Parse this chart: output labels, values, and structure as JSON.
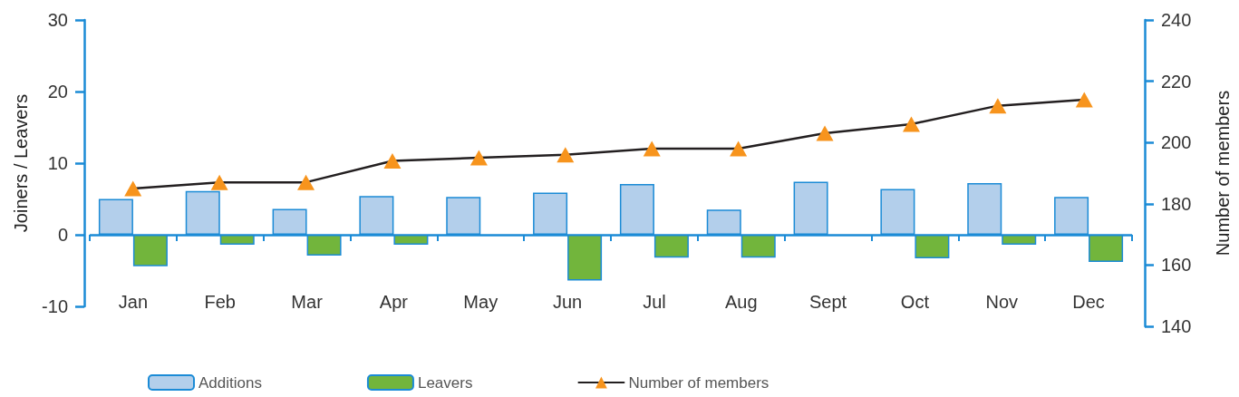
{
  "chart_data": {
    "type": "bar",
    "categories": [
      "Jan",
      "Feb",
      "Mar",
      "Apr",
      "May",
      "Jun",
      "Jul",
      "Aug",
      "Sept",
      "Oct",
      "Nov",
      "Dec"
    ],
    "series": [
      {
        "name": "Additions",
        "color": "#b3cfeb",
        "values": [
          5.0,
          6.1,
          3.6,
          5.4,
          5.3,
          5.9,
          7.1,
          3.5,
          7.4,
          6.4,
          7.2,
          5.3
        ]
      },
      {
        "name": "Leavers",
        "color": "#72b53c",
        "values": [
          -4.4,
          -1.4,
          -2.9,
          -1.4,
          null,
          -6.4,
          -3.2,
          -3.2,
          null,
          -3.3,
          -1.4,
          -3.8
        ]
      },
      {
        "name": "Number of members",
        "type": "line",
        "axis": "y2",
        "color": "#f7941d",
        "values": [
          185,
          187,
          187,
          194,
          195,
          196,
          198,
          198,
          203,
          206,
          212,
          214
        ]
      }
    ],
    "ylabel": "Joiners / Leavers",
    "y2label": "Number of members",
    "ylim": [
      -10,
      30
    ],
    "yticks": [
      -10,
      0,
      10,
      20,
      30
    ],
    "y2lim": [
      140,
      240
    ],
    "y2ticks": [
      140,
      160,
      180,
      200,
      220,
      240
    ],
    "ref_lines": [
      {
        "axis": "y",
        "value": 0,
        "color": "#1b8bd6"
      }
    ],
    "marker": "triangle",
    "line_style": "solid",
    "grid": false,
    "legend": "bottom"
  }
}
